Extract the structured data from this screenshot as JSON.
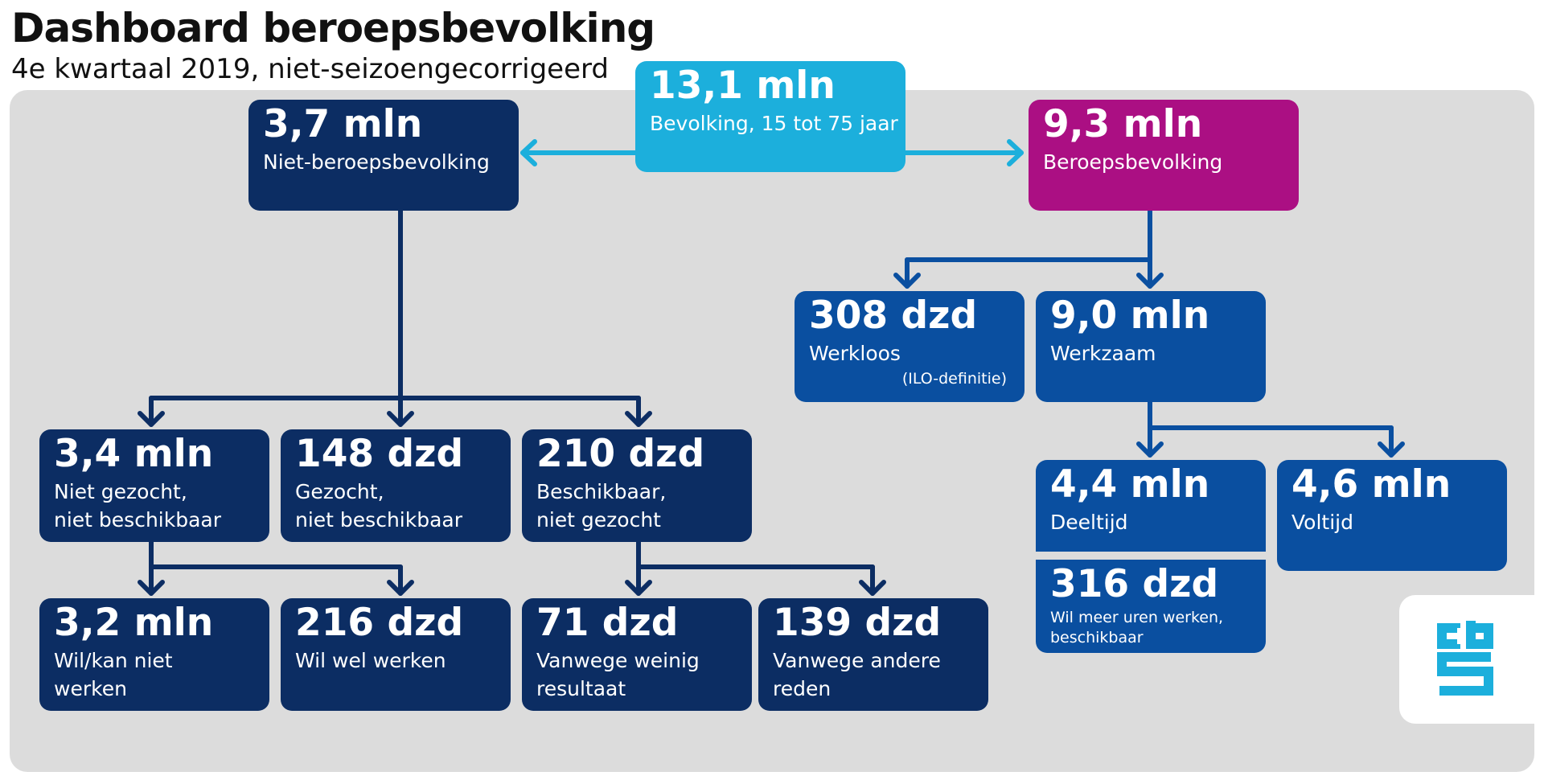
{
  "header": {
    "title": "Dashboard beroepsbevolking",
    "subtitle": "4e kwartaal 2019, niet-seizoengecorrigeerd"
  },
  "colors": {
    "navy": "#0c2d63",
    "blue": "#0a4fa0",
    "cyan": "#1cafdc",
    "magenta": "#ab0f83",
    "panel": "#dcdcdc"
  },
  "boxes": {
    "bevolking": {
      "value": "13,1 mln",
      "label": "Bevolking, 15 tot 75 jaar"
    },
    "niet_beroeps": {
      "value": "3,7 mln",
      "label": "Niet-beroepsbevolking"
    },
    "beroeps": {
      "value": "9,3 mln",
      "label": "Beroepsbevolking"
    },
    "werkloos": {
      "value": "308 dzd",
      "label": "Werkloos",
      "note": "(ILO-definitie)"
    },
    "werkzaam": {
      "value": "9,0 mln",
      "label": "Werkzaam"
    },
    "niet_gezocht": {
      "value": "3,4 mln",
      "label1": "Niet gezocht,",
      "label2": "niet beschikbaar"
    },
    "gezocht": {
      "value": "148 dzd",
      "label1": "Gezocht,",
      "label2": "niet beschikbaar"
    },
    "beschikbaar": {
      "value": "210 dzd",
      "label1": "Beschikbaar,",
      "label2": "niet gezocht"
    },
    "deeltijd": {
      "value": "4,4 mln",
      "label": "Deeltijd"
    },
    "voltijd": {
      "value": "4,6 mln",
      "label": "Voltijd"
    },
    "meer_uren": {
      "value": "316 dzd",
      "label1": "Wil meer uren werken,",
      "label2": "beschikbaar"
    },
    "wil_kan_niet": {
      "value": "3,2 mln",
      "label1": "Wil/kan niet",
      "label2": "werken"
    },
    "wil_wel": {
      "value": "216 dzd",
      "label": "Wil wel werken"
    },
    "weinig_resultaat": {
      "value": "71 dzd",
      "label1": "Vanwege weinig",
      "label2": "resultaat"
    },
    "andere_reden": {
      "value": "139 dzd",
      "label1": "Vanwege andere",
      "label2": "reden"
    }
  },
  "logo": {
    "icon": "cbs-logo-icon",
    "letters": "cbs"
  }
}
